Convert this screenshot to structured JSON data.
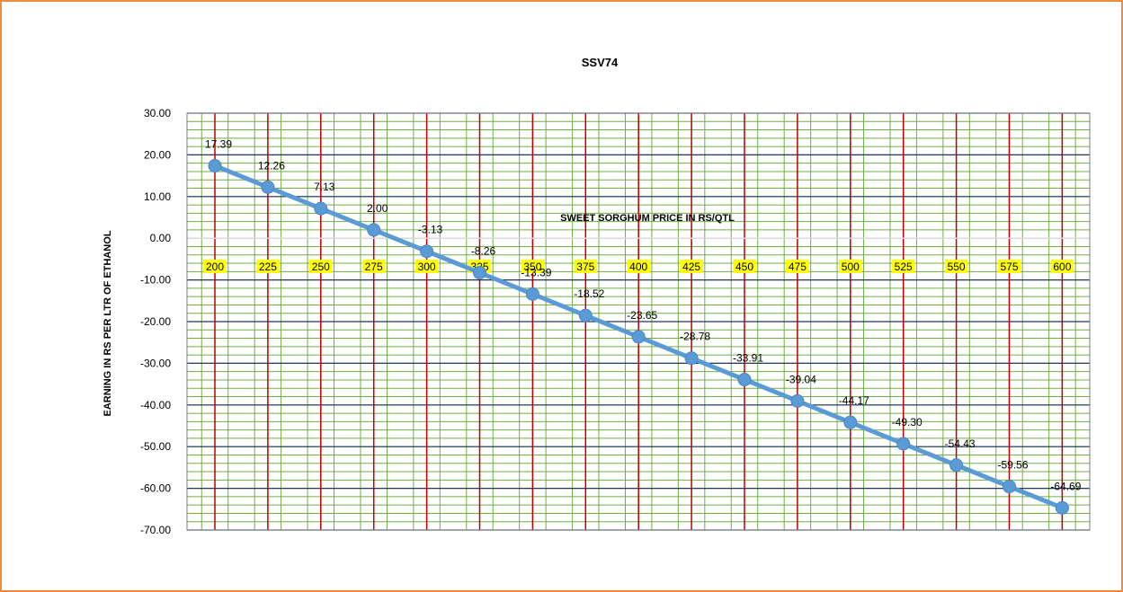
{
  "chart_data": {
    "type": "line",
    "title": "SSV74",
    "xlabel": "SWEET SORGHUM PRICE IN RS/QTL",
    "ylabel": "EARNING IN RS PER LTR OF ETHANOL",
    "categories": [
      "200",
      "225",
      "250",
      "275",
      "300",
      "325",
      "350",
      "375",
      "400",
      "425",
      "450",
      "475",
      "500",
      "525",
      "550",
      "575",
      "600"
    ],
    "series": [
      {
        "values": [
          17.39,
          12.26,
          7.13,
          2.0,
          -3.13,
          -8.26,
          -13.39,
          -18.52,
          -23.65,
          -28.78,
          -33.91,
          -39.04,
          -44.17,
          -49.3,
          -54.43,
          -59.56,
          -64.69
        ],
        "labels": [
          "17.39",
          "12.26",
          "7.13",
          "2.00",
          "-3.13",
          "-8.26",
          "-13.39",
          "-18.52",
          "-23.65",
          "-28.78",
          "-33.91",
          "-39.04",
          "-44.17",
          "-49.30",
          "-54.43",
          "-59.56",
          "-64.69"
        ]
      }
    ],
    "y_ticks": [
      "30.00",
      "20.00",
      "10.00",
      "0.00",
      "-10.00",
      "-20.00",
      "-30.00",
      "-40.00",
      "-50.00",
      "-60.00",
      "-70.00"
    ],
    "ylim": [
      -70,
      30
    ],
    "major_step": 10,
    "minor_step": 2,
    "grid": true,
    "legend": "none",
    "colors": {
      "line": "#5b9bd5",
      "vertical_grid": "#c00000",
      "minor_grid": "#70ad47",
      "major_grid": "#1f3864",
      "category_label_bg": "#ffff00",
      "border": "#f08a3c"
    }
  }
}
